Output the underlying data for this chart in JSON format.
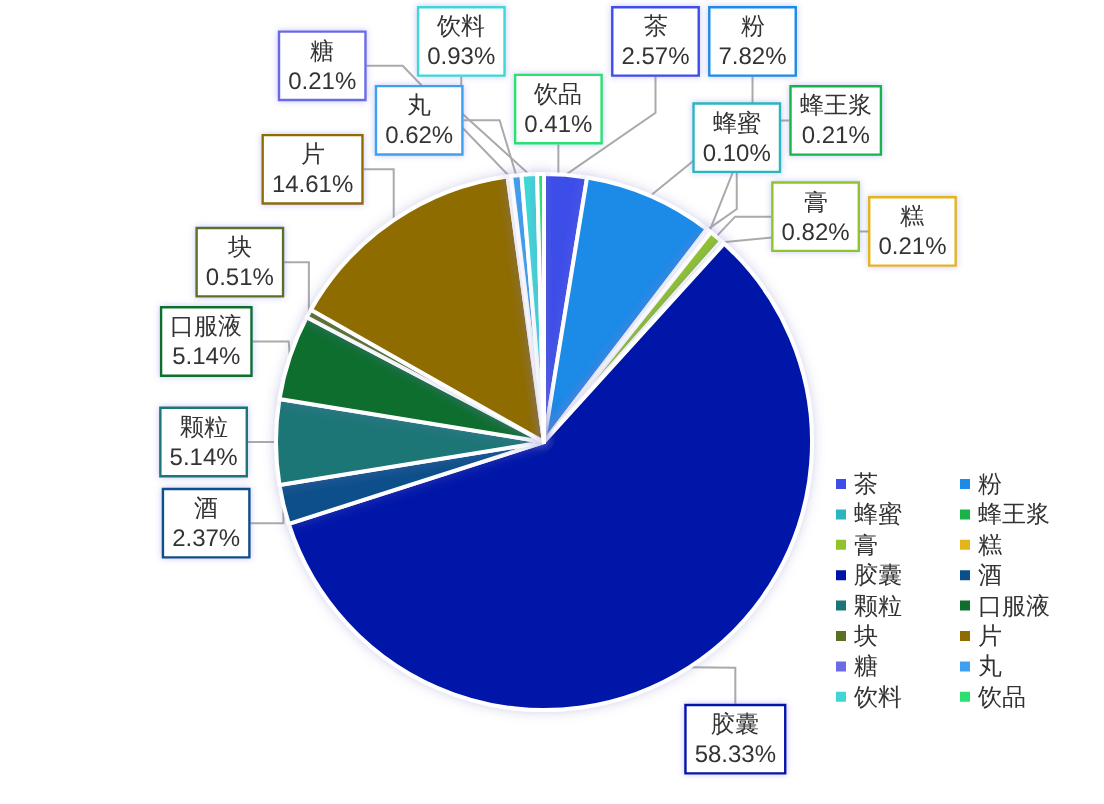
{
  "chart_data": {
    "type": "pie",
    "categories": [
      "茶",
      "粉",
      "蜂蜜",
      "蜂王浆",
      "膏",
      "糕",
      "胶囊",
      "酒",
      "颗粒",
      "口服液",
      "块",
      "片",
      "糖",
      "丸",
      "饮料",
      "饮品"
    ],
    "values": [
      2.57,
      7.82,
      0.1,
      0.21,
      0.82,
      0.21,
      58.33,
      2.37,
      5.14,
      5.14,
      0.51,
      14.61,
      0.21,
      0.62,
      0.93,
      0.41
    ],
    "value_labels": [
      "2.57%",
      "7.82%",
      "0.10%",
      "0.21%",
      "0.82%",
      "0.21%",
      "58.33%",
      "2.37%",
      "5.14%",
      "5.14%",
      "0.51%",
      "14.61%",
      "0.21%",
      "0.62%",
      "0.93%",
      "0.41%"
    ],
    "colors": [
      "#3d4ee8",
      "#1a8be8",
      "#2ab5c0",
      "#19b34a",
      "#8fc42a",
      "#e3b51a",
      "#0012a8",
      "#0a4f8a",
      "#1a7676",
      "#0e6e2e",
      "#5a7022",
      "#8f6c00",
      "#6b6be8",
      "#3ea0f0",
      "#40d6d6",
      "#2ae070"
    ],
    "legend": "bottom right"
  }
}
